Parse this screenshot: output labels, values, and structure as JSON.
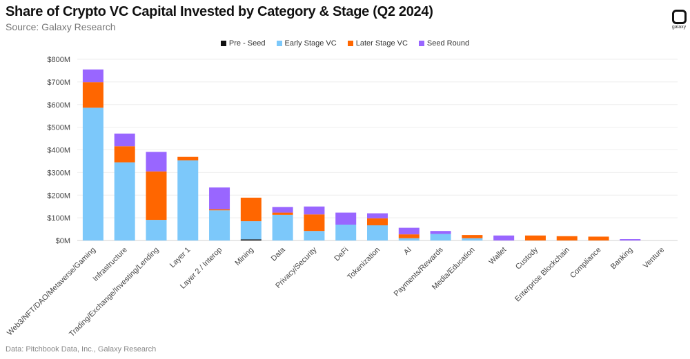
{
  "title": "Share of Crypto VC Capital Invested by Category & Stage (Q2 2024)",
  "subtitle": "Source: Galaxy Research",
  "footer": "Data: Pitchbook Data, Inc., Galaxy Research",
  "logo_text": "galaxy",
  "chart_data": {
    "type": "bar",
    "stacked": true,
    "title": "Share of Crypto VC Capital Invested by Category & Stage (Q2 2024)",
    "ylim": [
      0,
      800
    ],
    "yticks": [
      "$0M",
      "$100M",
      "$200M",
      "$300M",
      "$400M",
      "$500M",
      "$600M",
      "$700M",
      "$800M"
    ],
    "grid": true,
    "legend_position": "top",
    "categories": [
      "Web3/NFT/DAO/Metaverse/Gaming",
      "Infrastructure",
      "Trading/Exchange/Investing/Lending",
      "Layer 1",
      "Layer 2 / Interop",
      "Mining",
      "Data",
      "Privacy/Security",
      "DeFi",
      "Tokenization",
      "AI",
      "Payments/Rewards",
      "Media/Education",
      "Wallet",
      "Custody",
      "Enterprise Blockchain",
      "Compliance",
      "Banking",
      "Venture"
    ],
    "series": [
      {
        "name": "Pre - Seed",
        "color": "#111111",
        "values": [
          0,
          0,
          0,
          0,
          0,
          5,
          0,
          0,
          0,
          0,
          0,
          0,
          0,
          0,
          0,
          0,
          0,
          0,
          0
        ]
      },
      {
        "name": "Early Stage VC",
        "color": "#7cc8fa",
        "values": [
          586,
          345,
          91,
          354,
          133,
          80,
          113,
          42,
          70,
          67,
          10,
          29,
          10,
          0,
          0,
          0,
          0,
          0,
          0
        ]
      },
      {
        "name": "Later Stage VC",
        "color": "#ff6600",
        "values": [
          113,
          71,
          214,
          15,
          5,
          104,
          10,
          73,
          0,
          31,
          17,
          0,
          14,
          0,
          22,
          19,
          17,
          0,
          0
        ]
      },
      {
        "name": "Seed Round",
        "color": "#9966ff",
        "values": [
          56,
          56,
          86,
          0,
          96,
          0,
          25,
          35,
          53,
          22,
          29,
          13,
          0,
          22,
          0,
          0,
          0,
          6,
          0
        ]
      }
    ]
  }
}
